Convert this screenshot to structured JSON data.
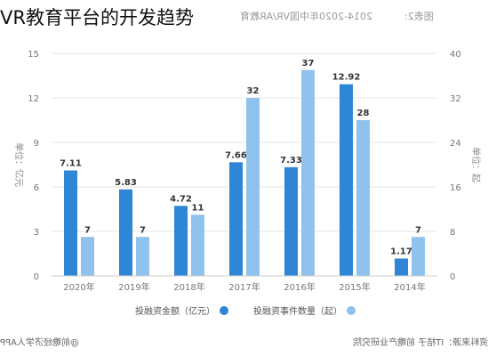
{
  "overlay_title": "VR教育平台的开发趋势",
  "figure_label": "图表2:",
  "header": "2014-2020年中国VR/AR教育",
  "footer": {
    "source": "资料来源：IT桔子 前瞻产业研究院",
    "app": "@前瞻经济学人APP"
  },
  "colors": {
    "dark_series": "#2f86d6",
    "light_series": "#8fc2ec"
  },
  "chart_data": {
    "type": "bar",
    "orientation": "mirrored",
    "categories": [
      "2020年",
      "2019年",
      "2018年",
      "2017年",
      "2016年",
      "2015年",
      "2014年"
    ],
    "series": [
      {
        "name": "投融资金额（亿元）",
        "axis": "left",
        "values": [
          7.11,
          5.83,
          4.72,
          7.66,
          7.33,
          12.92,
          1.17
        ],
        "labels": [
          "7.11",
          "5.83",
          "4.72",
          "7.66",
          "7.33",
          "12.92",
          "1.17"
        ],
        "color": "#2f86d6"
      },
      {
        "name": "投融资事件数量（起）",
        "axis": "right",
        "values": [
          7,
          7,
          11,
          32,
          37,
          28,
          7
        ],
        "labels": [
          "7",
          "7",
          "11",
          "32",
          "37",
          "28",
          "7"
        ],
        "color": "#8fc2ec"
      }
    ],
    "left_axis": {
      "label": "单位：亿元",
      "ticks": [
        "0",
        "3",
        "6",
        "9",
        "12",
        "15"
      ],
      "range": [
        0,
        15
      ]
    },
    "right_axis": {
      "label": "单位：起",
      "ticks": [
        "0",
        "8",
        "16",
        "24",
        "32",
        "40"
      ],
      "range": [
        0,
        40
      ]
    },
    "legend_position": "bottom",
    "grid": true
  }
}
